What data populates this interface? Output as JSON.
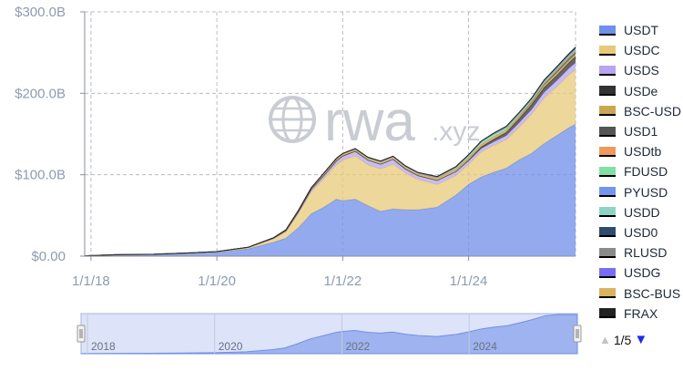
{
  "chart_data": {
    "type": "area",
    "stacked": true,
    "y_ticks": [
      "$0.00",
      "$100.0B",
      "$200.0B",
      "$300.0B"
    ],
    "x_ticks": [
      "1/1/18",
      "1/1/20",
      "1/1/22",
      "1/1/24"
    ],
    "ylim": [
      0,
      300
    ],
    "y_unit": "B USD",
    "x_range": [
      "2017-12",
      "2025-09"
    ],
    "grid": true,
    "legend_position": "right",
    "x": [
      2017.9,
      2018.5,
      2019.0,
      2019.5,
      2020.0,
      2020.5,
      2020.9,
      2021.1,
      2021.3,
      2021.5,
      2021.7,
      2021.9,
      2022.0,
      2022.2,
      2022.4,
      2022.6,
      2022.8,
      2023.0,
      2023.2,
      2023.5,
      2023.8,
      2024.0,
      2024.2,
      2024.4,
      2024.6,
      2024.8,
      2025.0,
      2025.2,
      2025.4,
      2025.6,
      2025.7
    ],
    "series": [
      {
        "name": "USDT",
        "color": "#6f8fe8",
        "values": [
          0.5,
          2,
          2,
          3,
          4.5,
          9,
          17,
          22,
          35,
          52,
          60,
          70,
          68,
          70,
          62,
          55,
          58,
          57,
          57,
          60,
          75,
          88,
          97,
          103,
          108,
          118,
          126,
          138,
          148,
          158,
          162
        ]
      },
      {
        "name": "USDC",
        "color": "#e8c97a",
        "values": [
          0,
          0,
          0.2,
          0.5,
          0.8,
          1.5,
          4,
          8,
          18,
          27,
          35,
          42,
          50,
          53,
          50,
          52,
          55,
          45,
          37,
          28,
          24,
          25,
          31,
          33,
          35,
          40,
          48,
          56,
          60,
          65,
          67
        ]
      },
      {
        "name": "USDS",
        "color": "#b7a5f0",
        "values": [
          0,
          0,
          0.2,
          0.3,
          0.3,
          0.5,
          1,
          1.5,
          2,
          3,
          4,
          5,
          5,
          6,
          6,
          6,
          6,
          5,
          5,
          5,
          5,
          4,
          4,
          4.5,
          5,
          5.5,
          6,
          7,
          7.5,
          8,
          8.5
        ]
      },
      {
        "name": "USDe",
        "color": "#333333",
        "values": [
          0,
          0,
          0,
          0,
          0,
          0,
          0,
          0,
          0,
          0,
          0,
          0,
          0,
          0,
          0,
          0,
          0,
          0,
          0,
          0,
          0,
          1,
          2,
          3,
          4,
          5,
          6,
          6,
          6.5,
          7,
          7.5
        ]
      },
      {
        "name": "BSC-USD",
        "color": "#c9a653",
        "values": [
          0,
          0,
          0,
          0,
          0,
          0,
          0.5,
          1,
          1.5,
          2,
          3,
          3,
          3,
          3,
          3,
          3,
          3,
          3,
          3,
          3,
          3,
          3,
          3,
          3,
          3,
          3,
          3,
          3,
          3,
          3,
          3
        ]
      },
      {
        "name": "USD1",
        "color": "#555555",
        "values": [
          0,
          0,
          0,
          0,
          0,
          0,
          0,
          0,
          0,
          0,
          0,
          0,
          0,
          0,
          0,
          0,
          0,
          0,
          0,
          0,
          0,
          0,
          0,
          0,
          0,
          0,
          0,
          1,
          2,
          2.2,
          2.3
        ]
      },
      {
        "name": "USDtb",
        "color": "#ef9a5a",
        "values": [
          0,
          0,
          0,
          0,
          0,
          0,
          0,
          0,
          0,
          0,
          0,
          0,
          0,
          0,
          0,
          0,
          0,
          0,
          0,
          0,
          0,
          0,
          0,
          0,
          0,
          0.3,
          0.7,
          1,
          1.3,
          1.5,
          1.6
        ]
      },
      {
        "name": "FDUSD",
        "color": "#7fe0a8",
        "values": [
          0,
          0,
          0,
          0,
          0,
          0,
          0,
          0,
          0,
          0,
          0,
          0,
          0,
          0,
          0,
          0,
          0,
          0,
          0,
          1,
          2,
          2.5,
          3,
          3,
          2.5,
          2,
          1.5,
          1.2,
          1,
          1,
          1
        ]
      },
      {
        "name": "PYUSD",
        "color": "#7296ee",
        "values": [
          0,
          0,
          0,
          0,
          0,
          0,
          0,
          0,
          0,
          0,
          0,
          0,
          0,
          0,
          0,
          0,
          0,
          0,
          0,
          0,
          0.2,
          0.3,
          0.4,
          0.5,
          0.6,
          0.7,
          0.8,
          0.9,
          1,
          1,
          1
        ]
      },
      {
        "name": "USDD",
        "color": "#8fd3c6",
        "values": [
          0,
          0,
          0,
          0,
          0,
          0,
          0,
          0,
          0,
          0,
          0,
          0,
          0,
          0,
          0.5,
          0.7,
          0.7,
          0.7,
          0.7,
          0.7,
          0.7,
          0.7,
          0.7,
          0.7,
          0.7,
          0.7,
          0.7,
          0.7,
          0.7,
          0.7,
          0.7
        ]
      },
      {
        "name": "USD0",
        "color": "#2f4b6e",
        "values": [
          0,
          0,
          0,
          0,
          0,
          0,
          0,
          0,
          0,
          0,
          0,
          0,
          0,
          0,
          0,
          0,
          0,
          0,
          0,
          0,
          0,
          0,
          0,
          0.3,
          0.6,
          0.8,
          0.9,
          0.9,
          0.9,
          0.9,
          0.9
        ]
      },
      {
        "name": "RLUSD",
        "color": "#8a8a8a",
        "values": [
          0,
          0,
          0,
          0,
          0,
          0,
          0,
          0,
          0,
          0,
          0,
          0,
          0,
          0,
          0,
          0,
          0,
          0,
          0,
          0,
          0,
          0,
          0,
          0,
          0,
          0,
          0.1,
          0.2,
          0.3,
          0.4,
          0.5
        ]
      },
      {
        "name": "USDG",
        "color": "#7a6df0",
        "values": [
          0,
          0,
          0,
          0,
          0,
          0,
          0,
          0,
          0,
          0,
          0,
          0,
          0,
          0,
          0,
          0,
          0,
          0,
          0,
          0,
          0,
          0,
          0,
          0,
          0,
          0,
          0.05,
          0.1,
          0.2,
          0.3,
          0.4
        ]
      },
      {
        "name": "BSC-BUS",
        "color": "#d9b360",
        "values": [
          0,
          0,
          0,
          0,
          0,
          0,
          0,
          0,
          0,
          0,
          0,
          0,
          0,
          0,
          0,
          0,
          0,
          0,
          0,
          0,
          0,
          0,
          0,
          0,
          0,
          0,
          0,
          0,
          0,
          0,
          0
        ]
      },
      {
        "name": "FRAX",
        "color": "#222222",
        "values": [
          0,
          0,
          0,
          0,
          0,
          0,
          0,
          0,
          0,
          0,
          0,
          0,
          0,
          0,
          0,
          0,
          0,
          0,
          0,
          0,
          0,
          0,
          0,
          0,
          0,
          0,
          0,
          0,
          0,
          0,
          0
        ]
      }
    ]
  },
  "watermark": {
    "text": "rwa",
    "suffix": ".xyz"
  },
  "navigator": {
    "labels": [
      "2018",
      "2020",
      "2022",
      "2024"
    ]
  },
  "pager": {
    "up_icon": "▲",
    "down_icon": "▼",
    "text": "1/5"
  }
}
